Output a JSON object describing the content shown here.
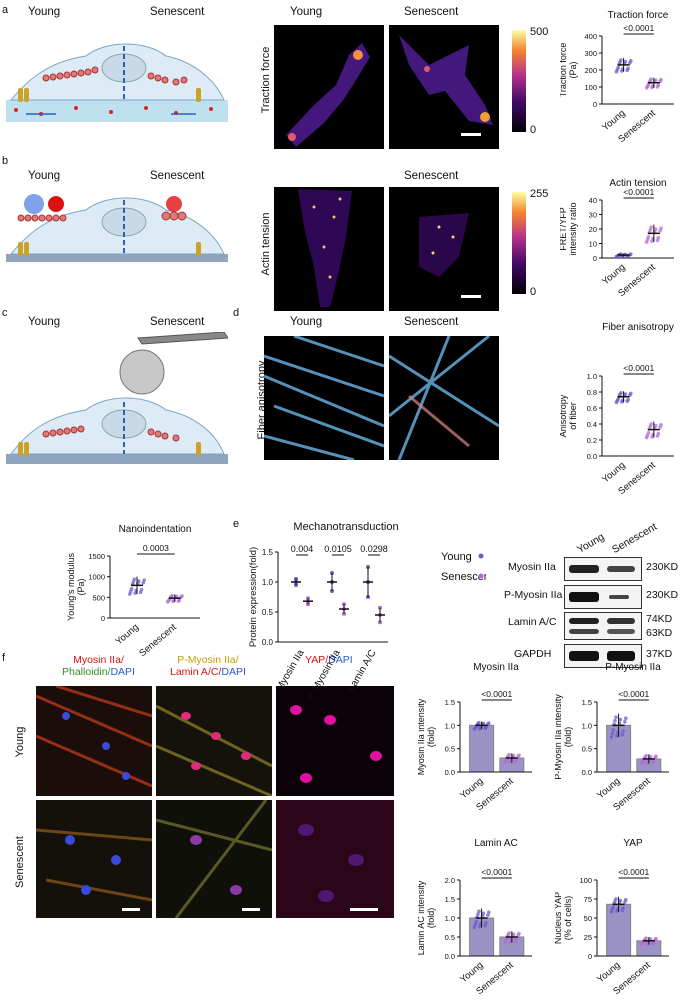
{
  "panels": {
    "a": "a",
    "b": "b",
    "c": "c",
    "d": "d",
    "e": "e",
    "f": "f"
  },
  "conditions": {
    "young": "Young",
    "senescent": "Senescent"
  },
  "row_labels": {
    "traction": "Traction force",
    "actin": "Actin tension",
    "anisotropy": "Fiber anisotropy"
  },
  "colorbars": {
    "traction": {
      "max": "500",
      "min": "0"
    },
    "actin": {
      "max": "255",
      "min": "0"
    }
  },
  "western": {
    "bands": [
      {
        "label": "Myosin IIa",
        "kd": "230KD"
      },
      {
        "label": "P-Myosin IIa",
        "kd": "230KD"
      },
      {
        "label": "Lamin A/C",
        "kd": "74KD",
        "kd2": "63KD"
      },
      {
        "label": "GAPDH",
        "kd": "37KD"
      }
    ]
  },
  "staining": {
    "col1": {
      "a": "Myosin IIa/",
      "b": "Phalloidin/",
      "c": "DAPI"
    },
    "col2": {
      "a": "P-Myosin IIa/",
      "b": "Lamin A/C/",
      "c": "DAPI"
    },
    "col3": {
      "a": "YAP/",
      "b": "DAPI"
    }
  },
  "colors": {
    "young": "#6a5acd",
    "senescent": "#b36bd6",
    "magenta": "#c0139a",
    "barfill": "#4a3a99"
  },
  "chart_data": [
    {
      "id": "traction",
      "type": "scatter",
      "title": "Traction force",
      "ylabel": "Traction force\n(Pa)",
      "categories": [
        "Young",
        "Senescent"
      ],
      "means": [
        230,
        125
      ],
      "sd": [
        40,
        30
      ],
      "ylim": [
        0,
        400
      ],
      "yticks": [
        0,
        100,
        200,
        300,
        400
      ],
      "pvalue": "<0.0001"
    },
    {
      "id": "actin",
      "type": "scatter",
      "title": "Actin tension",
      "ylabel": "FRET/YFP\nintensity ratio",
      "categories": [
        "Young",
        "Senescent"
      ],
      "means": [
        2,
        17
      ],
      "sd": [
        1,
        6
      ],
      "ylim": [
        0,
        40
      ],
      "yticks": [
        0,
        10,
        20,
        30,
        40
      ],
      "pvalue": "<0.0001"
    },
    {
      "id": "anisotropy",
      "type": "scatter",
      "title": "Fiber anisotropy",
      "ylabel": "Anisotropy\nof fiber",
      "categories": [
        "Young",
        "Senescent"
      ],
      "means": [
        0.74,
        0.33
      ],
      "sd": [
        0.07,
        0.1
      ],
      "ylim": [
        0,
        1.0
      ],
      "yticks": [
        0.0,
        0.2,
        0.4,
        0.6,
        0.8,
        1.0
      ],
      "pvalue": "<0.0001"
    },
    {
      "id": "nano",
      "type": "scatter",
      "title": "Nanoindentation",
      "ylabel": "Young's modulus\n(Pa)",
      "categories": [
        "Young",
        "Senescent"
      ],
      "means": [
        790,
        480
      ],
      "sd": [
        210,
        90
      ],
      "ylim": [
        0,
        1500
      ],
      "yticks": [
        0,
        500,
        1000,
        1500
      ],
      "pvalue": "0.0003"
    },
    {
      "id": "mechano",
      "type": "scatter",
      "title": "Mechanotransduction",
      "ylabel": "Protein expression(fold)",
      "categories": [
        "Myosin IIa",
        "P-Myosin IIa",
        "Lamin A/C"
      ],
      "series": [
        {
          "name": "Young",
          "means": [
            1.0,
            1.0,
            1.0
          ],
          "sd": [
            0.05,
            0.15,
            0.25
          ]
        },
        {
          "name": "Senescent",
          "means": [
            0.68,
            0.55,
            0.45
          ],
          "sd": [
            0.05,
            0.08,
            0.12
          ]
        }
      ],
      "ylim": [
        0,
        1.5
      ],
      "yticks": [
        0.0,
        0.5,
        1.0,
        1.5
      ],
      "pvalues": [
        "0.004",
        "0.0105",
        "0.0298"
      ]
    },
    {
      "id": "myosin",
      "type": "bar",
      "title": "Myosin IIa",
      "ylabel": "Myosin IIa intensity\n(fold)",
      "categories": [
        "Young",
        "Senescent"
      ],
      "values": [
        1.0,
        0.3
      ],
      "sd": [
        0.08,
        0.1
      ],
      "ylim": [
        0,
        1.5
      ],
      "yticks": [
        0.0,
        0.5,
        1.0,
        1.5
      ],
      "pvalue": "<0.0001"
    },
    {
      "id": "pmyosin",
      "type": "bar",
      "title": "P-Myosin IIa",
      "ylabel": "P-Myosin IIa intensity\n(fold)",
      "categories": [
        "Young",
        "Senescent"
      ],
      "values": [
        1.0,
        0.28
      ],
      "sd": [
        0.25,
        0.1
      ],
      "ylim": [
        0,
        1.5
      ],
      "yticks": [
        0.0,
        0.5,
        1.0,
        1.5
      ],
      "pvalue": "<0.0001"
    },
    {
      "id": "lamin",
      "type": "bar",
      "title": "Lamin AC",
      "ylabel": "Lamin AC intensity\n(fold)",
      "categories": [
        "Young",
        "Senescent"
      ],
      "values": [
        1.0,
        0.5
      ],
      "sd": [
        0.25,
        0.15
      ],
      "ylim": [
        0,
        2.0
      ],
      "yticks": [
        0.0,
        0.5,
        1.0,
        1.5,
        2.0
      ],
      "pvalue": "<0.0001"
    },
    {
      "id": "yap",
      "type": "bar",
      "title": "YAP",
      "ylabel": "Nucleus YAP\n(% of cells)",
      "categories": [
        "Young",
        "Senescent"
      ],
      "values": [
        68,
        20
      ],
      "sd": [
        10,
        5
      ],
      "ylim": [
        0,
        100
      ],
      "yticks": [
        0,
        25,
        50,
        75,
        100
      ],
      "pvalue": "<0.0001"
    }
  ]
}
